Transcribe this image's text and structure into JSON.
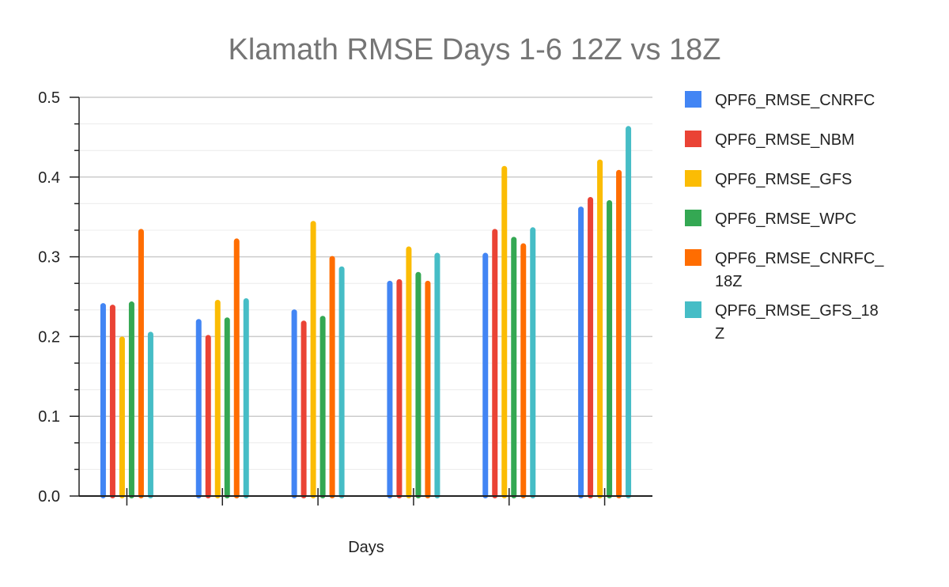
{
  "chart_data": {
    "type": "bar",
    "title": "Klamath RMSE Days 1-6 12Z vs 18Z",
    "xlabel": "Days",
    "ylabel": "",
    "ylim": [
      0,
      0.5
    ],
    "yticks": [
      "0.0",
      "0.1",
      "0.2",
      "0.3",
      "0.4",
      "0.5"
    ],
    "categories": [
      "",
      "",
      "",
      "",
      "",
      ""
    ],
    "grid": true,
    "legend_position": "right",
    "series": [
      {
        "name": "QPF6_RMSE_CNRFC",
        "legend_lines": [
          "QPF6_RMSE_CNRFC"
        ],
        "color": "#4285F4",
        "values": [
          0.242,
          0.222,
          0.234,
          0.27,
          0.305,
          0.363
        ]
      },
      {
        "name": "QPF6_RMSE_NBM",
        "legend_lines": [
          "QPF6_RMSE_NBM"
        ],
        "color": "#EA4335",
        "values": [
          0.24,
          0.202,
          0.22,
          0.272,
          0.335,
          0.375
        ]
      },
      {
        "name": "QPF6_RMSE_GFS",
        "legend_lines": [
          "QPF6_RMSE_GFS"
        ],
        "color": "#FBBC04",
        "values": [
          0.2,
          0.246,
          0.345,
          0.313,
          0.414,
          0.422
        ]
      },
      {
        "name": "QPF6_RMSE_WPC",
        "legend_lines": [
          "QPF6_RMSE_WPC"
        ],
        "color": "#34A853",
        "values": [
          0.244,
          0.224,
          0.226,
          0.281,
          0.325,
          0.371
        ]
      },
      {
        "name": "QPF6_RMSE_CNRFC_18Z",
        "legend_lines": [
          "QPF6_RMSE_CNRFC_",
          "18Z"
        ],
        "color": "#FF6D01",
        "values": [
          0.335,
          0.323,
          0.301,
          0.27,
          0.317,
          0.409
        ]
      },
      {
        "name": "QPF6_RMSE_GFS_18Z",
        "legend_lines": [
          "QPF6_RMSE_GFS_18",
          "Z"
        ],
        "color": "#46BDC6",
        "values": [
          0.206,
          0.248,
          0.288,
          0.305,
          0.337,
          0.464
        ]
      }
    ]
  }
}
